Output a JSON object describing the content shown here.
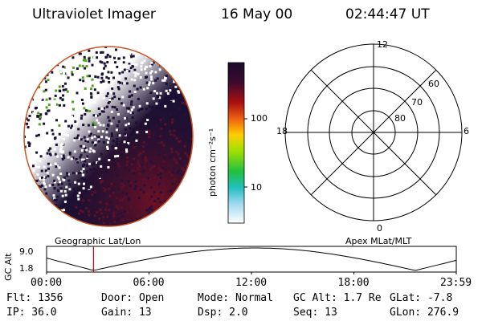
{
  "header": {
    "instrument": "Ultraviolet Imager",
    "date": "16 May 00",
    "time": "02:44:47 UT"
  },
  "colorbar": {
    "unit_label": "photon cm⁻²s⁻¹",
    "ticks": [
      "100",
      "10"
    ]
  },
  "polar_plot": {
    "mlt_labels": {
      "top": "12",
      "left": "18",
      "right": "6",
      "bottom": "0"
    },
    "lat_labels": [
      "60",
      "70",
      "80"
    ]
  },
  "orbit_panel": {
    "left_title": "Geographic Lat/Lon",
    "right_title": "Apex MLat/MLT",
    "y_axis_label": "GC Alt",
    "y_ticks": [
      "9.0",
      "1.8"
    ],
    "x_ticks": [
      "00:00",
      "06:00",
      "12:00",
      "18:00",
      "23:59"
    ],
    "x_tick_hours": [
      0,
      6,
      12,
      18,
      24
    ],
    "current_hour": 2.746,
    "alt_range": [
      1.8,
      9.0
    ],
    "colors": {
      "marker": "#cc0000",
      "curve": "#000000"
    }
  },
  "info": {
    "flt": "Flt: 1356",
    "ip": "IP: 36.0",
    "door": "Door: Open",
    "gain": "Gain: 13",
    "mode": "Mode: Normal",
    "dsp": "Dsp:   2.0",
    "gc_alt": "GC Alt: 1.7 Re",
    "seq": "Seq: 13",
    "glat": "GLat:  -7.8",
    "glon": "GLon: 276.9"
  },
  "colors": {
    "earth_limb": "#cc5522",
    "dark_fill": "#1a1033",
    "green_patch": "#55a022",
    "red_glow": "#7a1020"
  }
}
